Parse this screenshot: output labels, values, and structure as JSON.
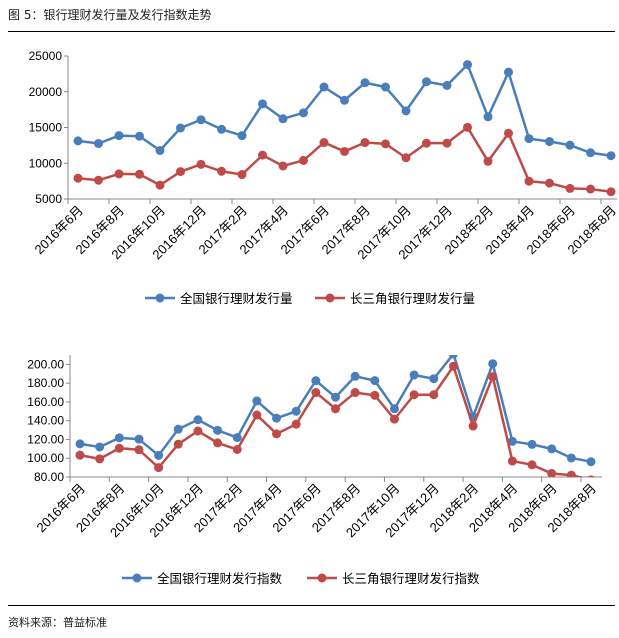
{
  "title": "图 5：银行理财发行量及发行指数走势",
  "source": "资料来源：普益标准",
  "chart_data": [
    {
      "type": "line",
      "x": [
        "2016年6月",
        "2016年7月",
        "2016年8月",
        "2016年9月",
        "2016年10月",
        "2016年11月",
        "2016年12月",
        "2017年1月",
        "2017年2月",
        "2017年3月",
        "2017年4月",
        "2017年5月",
        "2017年6月",
        "2017年7月",
        "2017年8月",
        "2017年9月",
        "2017年10月",
        "2017年11月",
        "2017年12月",
        "2018年1月",
        "2018年2月",
        "2018年3月",
        "2018年4月",
        "2018年5月",
        "2018年6月",
        "2018年7月",
        "2018年8月"
      ],
      "tick_labels": [
        "2016年6月",
        "2016年8月",
        "2016年10月",
        "2016年12月",
        "2017年2月",
        "2017年4月",
        "2017年6月",
        "2017年8月",
        "2017年10月",
        "2017年12月",
        "2018年2月",
        "2018年4月",
        "2018年6月",
        "2018年8月"
      ],
      "ylim": [
        5000,
        25000
      ],
      "yticks": [
        "5000",
        "10000",
        "15000",
        "20000",
        "25000"
      ],
      "legend_position": "bottom",
      "series": [
        {
          "name": "全国银行理财发行量",
          "color": "#4a7ebb",
          "values": [
            13130,
            12760,
            13870,
            13780,
            11790,
            14930,
            16090,
            14750,
            13870,
            18300,
            16220,
            17050,
            20660,
            18810,
            21260,
            20660,
            17330,
            21400,
            20890,
            23800,
            16500,
            22740,
            13450,
            13040,
            12530,
            11470,
            11050
          ]
        },
        {
          "name": "长三角银行理财发行量",
          "color": "#be4b48",
          "values": [
            7910,
            7630,
            8510,
            8460,
            6940,
            8830,
            9850,
            8880,
            8420,
            11140,
            9620,
            10400,
            12900,
            11650,
            12900,
            12710,
            10770,
            12810,
            12810,
            15020,
            10270,
            14190,
            7490,
            7220,
            6480,
            6390,
            6020
          ]
        }
      ]
    },
    {
      "type": "line",
      "x": [
        "2016年6月",
        "2016年7月",
        "2016年8月",
        "2016年9月",
        "2016年10月",
        "2016年11月",
        "2016年12月",
        "2017年1月",
        "2017年2月",
        "2017年3月",
        "2017年4月",
        "2017年5月",
        "2017年6月",
        "2017年7月",
        "2017年8月",
        "2017年9月",
        "2017年10月",
        "2017年11月",
        "2017年12月",
        "2018年1月",
        "2018年2月",
        "2018年3月",
        "2018年4月",
        "2018年5月",
        "2018年6月",
        "2018年7月",
        "2018年8月"
      ],
      "tick_labels": [
        "2016年6月",
        "2016年8月",
        "2016年10月",
        "2016年12月",
        "2017年2月",
        "2017年4月",
        "2017年6月",
        "2017年8月",
        "2017年10月",
        "2017年12月",
        "2018年2月",
        "2018年4月",
        "2018年6月",
        "2018年8月"
      ],
      "ylim": [
        80,
        210
      ],
      "yticks": [
        "80.00",
        "100.00",
        "120.00",
        "140.00",
        "160.00",
        "180.00",
        "200.00"
      ],
      "legend_position": "bottom",
      "series": [
        {
          "name": "全国银行理财发行指数",
          "color": "#4a7ebb",
          "values": [
            115.3,
            112,
            121.7,
            120.3,
            103,
            131,
            141,
            129.7,
            122,
            161,
            142.7,
            150,
            182.7,
            165,
            187.3,
            182.7,
            152.7,
            188.7,
            184.7,
            211,
            144.3,
            200.7,
            118,
            114.7,
            110,
            100.3,
            96.3
          ]
        },
        {
          "name": "长三角银行理财发行指数",
          "color": "#be4b48",
          "values": [
            103.3,
            99.3,
            110.7,
            109,
            90,
            115,
            129,
            116.3,
            109.3,
            146,
            126,
            136.3,
            170,
            152.7,
            170,
            167,
            141.7,
            167.7,
            167.7,
            198,
            134.3,
            187,
            97,
            93,
            83.7,
            82,
            77
          ]
        }
      ]
    }
  ]
}
